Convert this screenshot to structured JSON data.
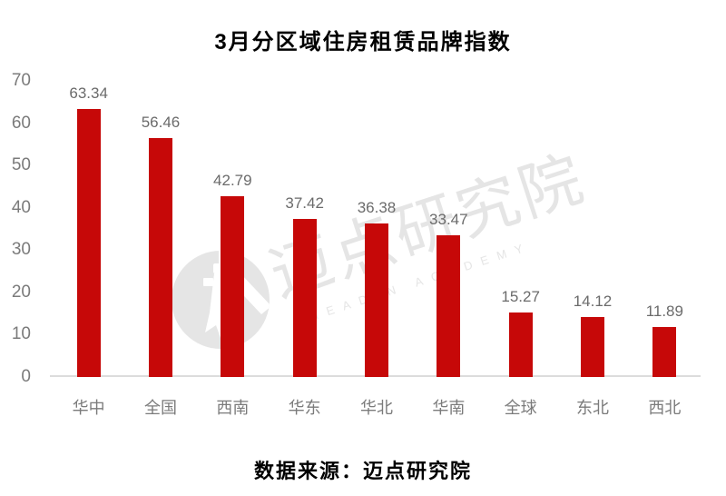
{
  "title": "3月分区域住房租赁品牌指数",
  "source": "数据来源：迈点研究院",
  "watermark": {
    "cn": "迈点研究院",
    "en": "MEADIN ACADEMY"
  },
  "colors": {
    "bar": "#C60808",
    "axis_text": "#7B7B7B",
    "value_text": "#6B6B6B",
    "baseline": "#DCDCDC",
    "watermark": "#E5E5E5",
    "ink": "#000000"
  },
  "chart_data": {
    "type": "bar",
    "title": "3月分区域住房租赁品牌指数",
    "categories": [
      "华中",
      "全国",
      "西南",
      "华东",
      "华北",
      "华南",
      "全球",
      "东北",
      "西北"
    ],
    "values": [
      63.34,
      56.46,
      42.79,
      37.42,
      36.38,
      33.47,
      15.27,
      14.12,
      11.89
    ],
    "xlabel": "",
    "ylabel": "",
    "ylim": [
      0,
      70
    ],
    "yticks": [
      0,
      10,
      20,
      30,
      40,
      50,
      60,
      70
    ],
    "grid": false,
    "legend": false,
    "value_labels": true,
    "bar_color": "#C60808",
    "source_note": "数据来源：迈点研究院"
  }
}
